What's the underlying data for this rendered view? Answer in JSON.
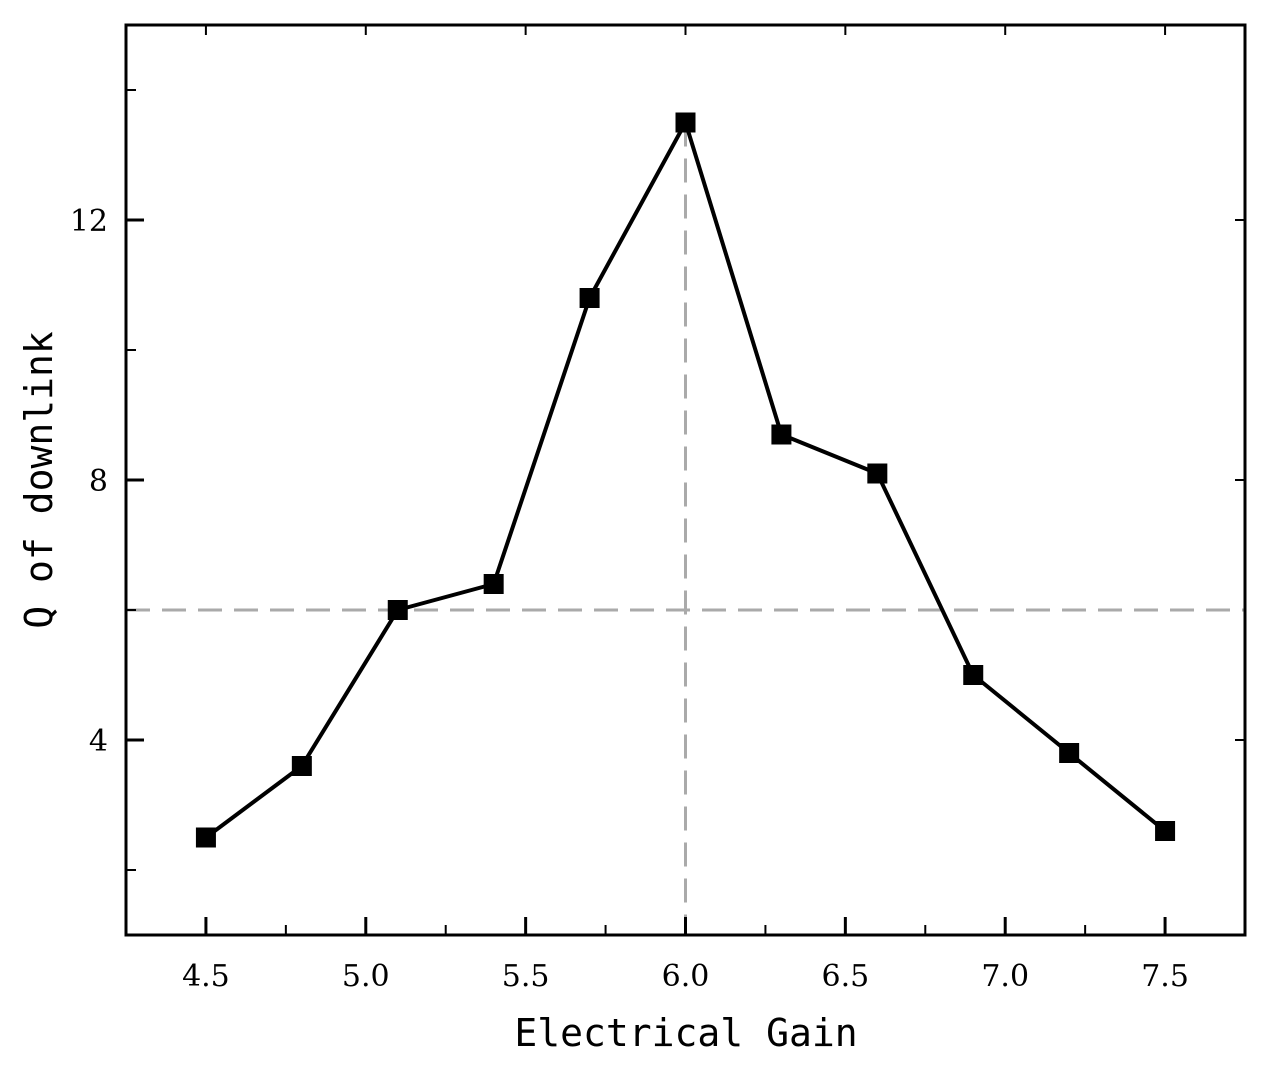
{
  "chart_data": {
    "type": "line",
    "xlabel": "Electrical Gain",
    "ylabel": "Q of downlink",
    "xlim": [
      4.25,
      7.75
    ],
    "ylim": [
      1.0,
      15.0
    ],
    "x_ticks": [
      4.5,
      5.0,
      5.5,
      6.0,
      6.5,
      7.0,
      7.5
    ],
    "x_tick_labels": [
      "4.5",
      "5.0",
      "5.5",
      "6.0",
      "6.5",
      "7.0",
      "7.5"
    ],
    "x_minor_ticks": [
      4.75,
      5.25,
      5.75,
      6.25,
      6.75,
      7.25
    ],
    "y_ticks": [
      4,
      8,
      12
    ],
    "y_tick_labels": [
      "4",
      "8",
      "12"
    ],
    "y_minor_ticks": [
      2,
      6,
      10,
      14
    ],
    "series": [
      {
        "marker": "square",
        "color": "#000000",
        "x": [
          4.5,
          4.8,
          5.1,
          5.4,
          5.7,
          6.0,
          6.3,
          6.6,
          6.9,
          7.2,
          7.5
        ],
        "y": [
          2.5,
          3.6,
          6.0,
          6.4,
          10.8,
          13.5,
          8.7,
          8.1,
          5.0,
          3.8,
          2.6
        ]
      }
    ],
    "reference_lines": [
      {
        "orientation": "horizontal",
        "value": 6.0,
        "style": "dashed",
        "color": "#aaaaaa"
      },
      {
        "orientation": "vertical",
        "value": 6.0,
        "style": "dashed",
        "color": "#aaaaaa"
      }
    ],
    "grid": false,
    "legend": "none"
  }
}
